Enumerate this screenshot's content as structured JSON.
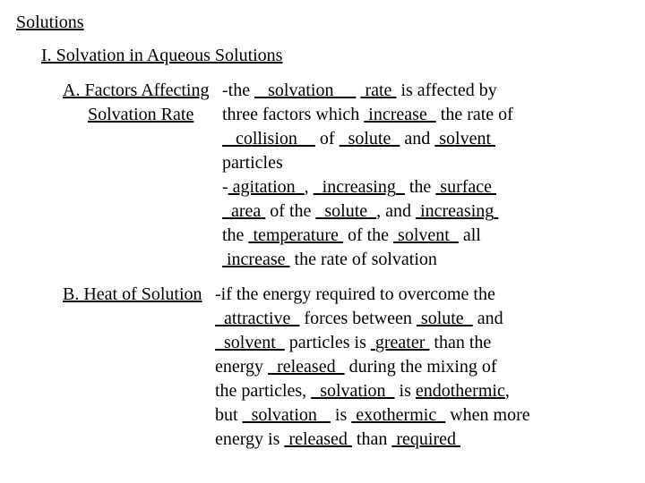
{
  "title": "Solutions",
  "roman": "I.  Solvation in Aqueous Solutions",
  "a": {
    "label1": "A.  Factors Affecting",
    "label2": "Solvation Rate",
    "t": {
      "the": "the ",
      "solvation": "solvation",
      "rate": "rate",
      "aff": " is affected by",
      "three": "three factors which ",
      "increase1": "increase",
      "therate": " the rate of",
      "collision": "collision",
      "of": " of ",
      "solute1": "solute",
      "and1": " and ",
      "solvent1": "solvent",
      "particles": "particles",
      "agitation": "agitation",
      "comma1": ", ",
      "increasing1": "increasing",
      "the2": " the ",
      "surface": "surface",
      "area": "area",
      "ofthe": " of the ",
      "solute2": "solute",
      "andc": ", and ",
      "increasing2": "increasing",
      "the3": "the ",
      "temperature": "temperature",
      "ofthe2": " of the ",
      "solvent2": "solvent",
      "all": " all",
      "increase2": "increase",
      "rest": " the rate of solvation"
    }
  },
  "b": {
    "label": "B.  Heat of Solution",
    "t": {
      "if": "if the energy required to overcome the",
      "attractive": "attractive",
      "forces": " forces between ",
      "solute": "solute",
      "and": " and",
      "solvent": "solvent",
      "partis": " particles is ",
      "greater": "greater",
      "than": " than the",
      "energy": "energy ",
      "released": "released",
      "during": " during the mixing of",
      "theparts": "the particles, ",
      "solvation1": "solvation",
      "is1": " is ",
      "endo": "endothermic",
      "comma": ",",
      "but": "but ",
      "solvation2": "solvation",
      "is2": " is ",
      "exo": "exothermic",
      "when": " when more",
      "energyis": "energy is ",
      "released2": "released",
      "thantxt": " than ",
      "required": "required"
    }
  }
}
